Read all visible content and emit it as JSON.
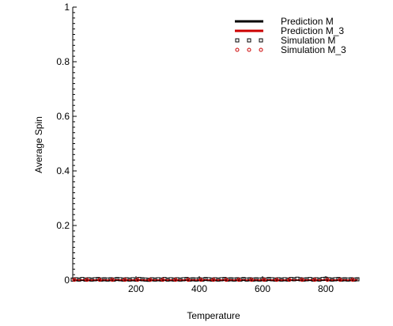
{
  "chart_data": {
    "type": "scatter",
    "title": "",
    "xlabel": "Temperature",
    "ylabel": "Average Spin",
    "xlim": [
      0,
      900
    ],
    "ylim": [
      0,
      1
    ],
    "x_ticks": [
      200,
      400,
      600,
      800
    ],
    "y_ticks": [
      0,
      0.2,
      0.4,
      0.6,
      0.8,
      1
    ],
    "y_tick_labels": [
      "0",
      "0.2",
      "0.4",
      "0.6",
      "0.8",
      "1"
    ],
    "grid": false,
    "legend_position": "top-right",
    "series": [
      {
        "name": "Prediction M",
        "kind": "line",
        "color": "#000000",
        "x": [
          0,
          900
        ],
        "y": [
          0,
          0
        ]
      },
      {
        "name": "Prediction M_3",
        "kind": "line",
        "color": "#cc0000",
        "x": [
          0,
          900
        ],
        "y": [
          0,
          0
        ]
      },
      {
        "name": "Simulation M",
        "kind": "marker",
        "marker": "square",
        "color": "#000000",
        "x": [
          0,
          10,
          20,
          30,
          40,
          50,
          60,
          70,
          80,
          90,
          100,
          110,
          120,
          130,
          140,
          150,
          160,
          170,
          180,
          190,
          200,
          210,
          220,
          230,
          240,
          250,
          260,
          270,
          280,
          290,
          300,
          310,
          320,
          330,
          340,
          350,
          360,
          370,
          380,
          390,
          400,
          410,
          420,
          430,
          440,
          450,
          460,
          470,
          480,
          490,
          500,
          510,
          520,
          530,
          540,
          550,
          560,
          570,
          580,
          590,
          600,
          610,
          620,
          630,
          640,
          650,
          660,
          670,
          680,
          690,
          700,
          710,
          720,
          730,
          740,
          750,
          760,
          770,
          780,
          790,
          800,
          810,
          820,
          830,
          840,
          850,
          860,
          870,
          880,
          890,
          900
        ],
        "y": [
          0.002,
          0.003,
          0.002,
          0.004,
          0.002,
          0.003,
          0.002,
          0.003,
          0.004,
          0.002,
          0.003,
          0.002,
          0.003,
          0.002,
          0.004,
          0.003,
          0.002,
          0.003,
          0.002,
          0.003,
          0.002,
          0.004,
          0.003,
          0.002,
          0.001,
          0.003,
          0.002,
          0.003,
          0.002,
          0.004,
          0.002,
          0.003,
          0.002,
          0.003,
          0.002,
          0.003,
          0.004,
          0.002,
          0.003,
          0.002,
          0.003,
          0.002,
          0.004,
          0.003,
          0.002,
          0.003,
          0.002,
          0.003,
          0.004,
          0.002,
          0.003,
          0.002,
          0.003,
          0.002,
          0.004,
          0.002,
          0.003,
          0.002,
          0.003,
          0.002,
          0.003,
          0.002,
          0.004,
          0.003,
          0.002,
          0.003,
          0.002,
          0.003,
          0.002,
          0.004,
          0.003,
          0.005,
          0.003,
          0.002,
          0.003,
          0.004,
          0.002,
          0.003,
          0.002,
          0.004,
          0.005,
          0.003,
          0.002,
          0.003,
          0.004,
          0.002,
          0.003,
          0.002,
          0.003,
          0.002,
          0.003
        ]
      },
      {
        "name": "Simulation M_3",
        "kind": "marker",
        "marker": "circle",
        "color": "#cc0000",
        "x": [
          5,
          45,
          85,
          125,
          165,
          205,
          245,
          285,
          325,
          365,
          405,
          445,
          485,
          525,
          565,
          605,
          645,
          685,
          725,
          765,
          805,
          845,
          885
        ],
        "y": [
          0.001,
          0.001,
          0.001,
          0.001,
          0.001,
          0.001,
          0.001,
          0.001,
          0.001,
          0.001,
          0.001,
          0.001,
          0.001,
          0.001,
          0.001,
          0.001,
          0.001,
          0.001,
          0.001,
          0.001,
          0.001,
          0.001,
          0.001
        ]
      }
    ]
  }
}
